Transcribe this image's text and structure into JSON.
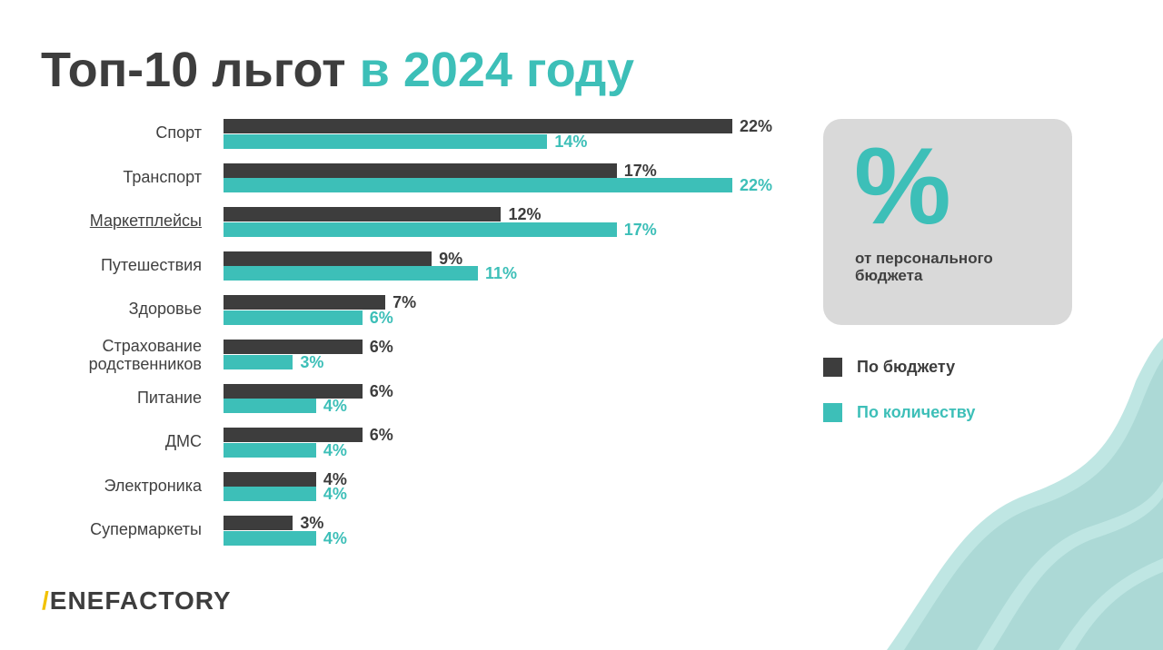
{
  "title": {
    "main": "Топ-10 льгот",
    "accent": "в 2024 году"
  },
  "card": {
    "symbol": "%",
    "text": "от персонального бюджета"
  },
  "logo": "BENEFACTORY",
  "colors": {
    "dark": "#3d3d3d",
    "teal": "#3dbfb8",
    "card": "#d9d9d9",
    "wave": "#acd9d6",
    "wave_light": "#bfe6e3"
  },
  "chart_data": {
    "type": "bar",
    "orientation": "horizontal",
    "title": "Топ-10 льгот в 2024 году",
    "categories": [
      "Спорт",
      "Транспорт",
      "Маркетплейсы",
      "Путешествия",
      "Здоровье",
      "Страхование родственников",
      "Питание",
      "ДМС",
      "Электроника",
      "Супермаркеты"
    ],
    "series": [
      {
        "name": "По бюджету",
        "color": "#3d3d3d",
        "values": [
          22,
          17,
          12,
          9,
          7,
          6,
          6,
          6,
          4,
          3
        ]
      },
      {
        "name": "По количеству",
        "color": "#3dbfb8",
        "values": [
          14,
          22,
          17,
          11,
          6,
          3,
          4,
          4,
          4,
          4
        ]
      }
    ],
    "unit": "%",
    "xlim": [
      0,
      22
    ],
    "grid": false,
    "legend": "right"
  }
}
